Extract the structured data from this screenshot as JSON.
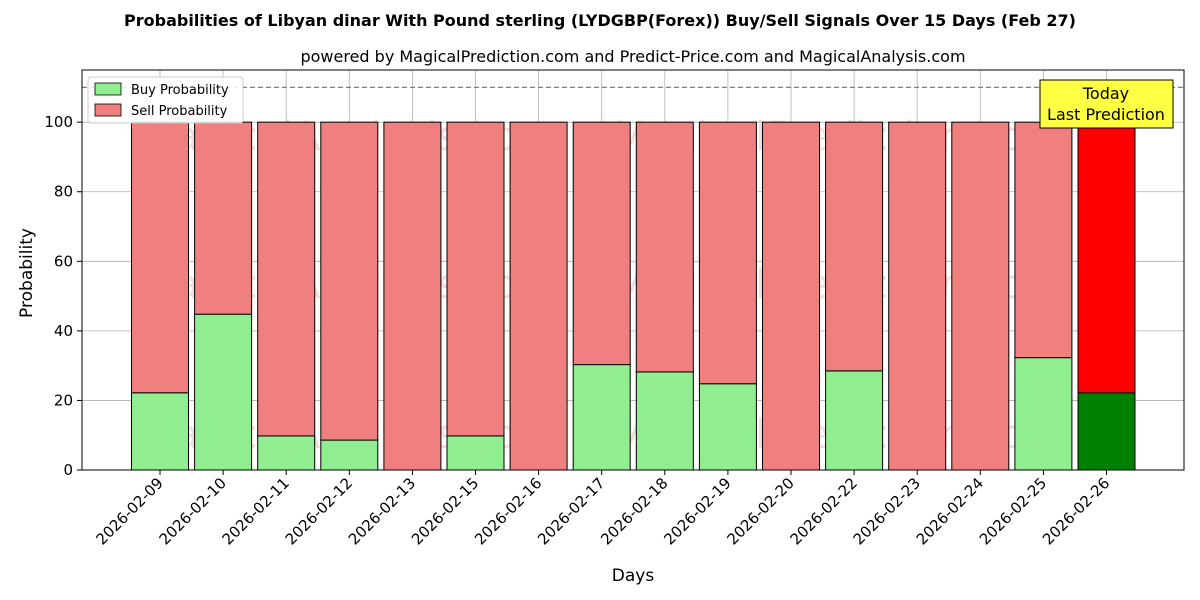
{
  "chart_data": {
    "type": "bar",
    "stacked": true,
    "title": "Probabilities of Libyan dinar With Pound sterling (LYDGBP(Forex)) Buy/Sell Signals Over 15 Days (Feb 27)",
    "subtitle": "powered by MagicalPrediction.com and Predict-Price.com and MagicalAnalysis.com",
    "xlabel": "Days",
    "ylabel": "Probability",
    "ylim": [
      0,
      115
    ],
    "yticks": [
      0,
      20,
      40,
      60,
      80,
      100
    ],
    "grid": true,
    "legend_position": "top-left",
    "reference_line": 110,
    "categories": [
      "2026-02-09",
      "2026-02-10",
      "2026-02-11",
      "2026-02-12",
      "2026-02-13",
      "2026-02-15",
      "2026-02-16",
      "2026-02-17",
      "2026-02-18",
      "2026-02-19",
      "2026-02-20",
      "2026-02-22",
      "2026-02-23",
      "2026-02-24",
      "2026-02-25",
      "2026-02-26"
    ],
    "series": [
      {
        "name": "Buy Probability",
        "color": "#90ee90",
        "highlight_color": "#008000",
        "values": [
          22.2,
          44.8,
          9.8,
          8.6,
          0,
          9.8,
          0,
          30.3,
          28.2,
          24.8,
          0,
          28.5,
          0,
          0,
          32.3,
          22.2
        ]
      },
      {
        "name": "Sell Probability",
        "color": "#f08080",
        "highlight_color": "#ff0000",
        "values": [
          77.8,
          55.2,
          90.2,
          91.4,
          100,
          90.2,
          100,
          69.7,
          71.8,
          75.2,
          100,
          71.5,
          100,
          100,
          67.7,
          77.8
        ]
      }
    ],
    "highlight_index": 15,
    "annotation": {
      "line1": "Today",
      "line2": "Last Prediction",
      "bg": "#ffff44"
    },
    "watermarks": [
      "MagicalAnalysis.com",
      "MagicalPrediction.com"
    ]
  }
}
